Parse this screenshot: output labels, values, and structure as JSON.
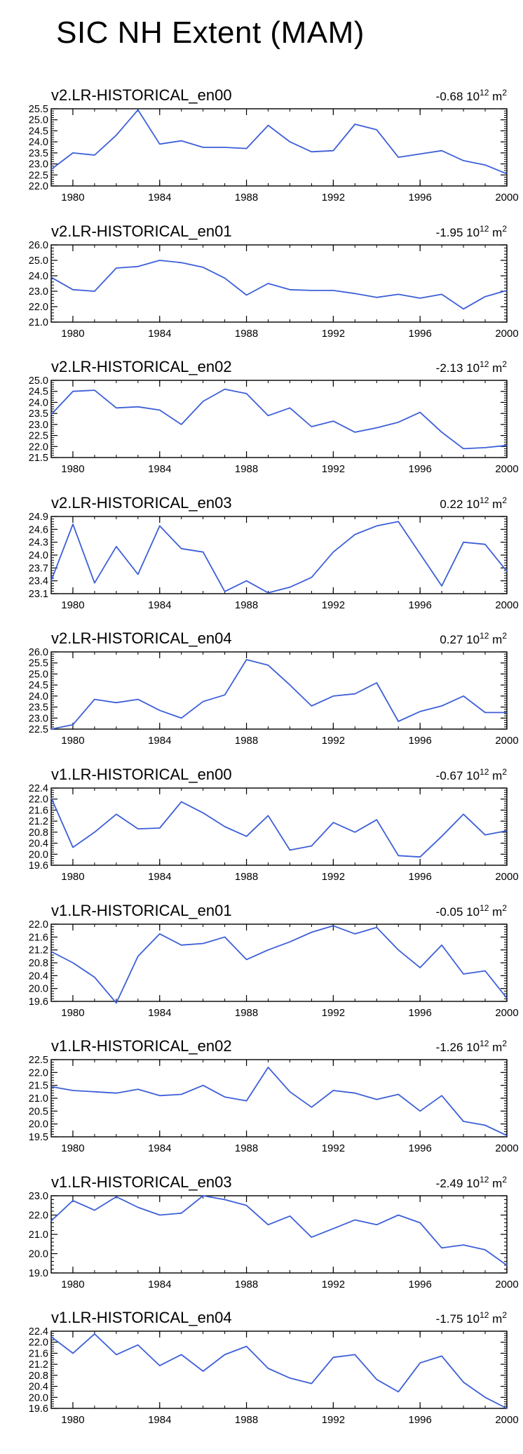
{
  "title": "SIC NH Extent (MAM)",
  "colors": {
    "line": "#3d5fd8",
    "axis": "#000000"
  },
  "chart_data": [
    {
      "type": "line",
      "title": "v2.LR-HISTORICAL_en00",
      "trend_value": "-0.68",
      "units_base": "10",
      "units_exp": "12",
      "units_unit": "m",
      "units_unit_exp": "2",
      "x": [
        1979,
        1980,
        1981,
        1982,
        1983,
        1984,
        1985,
        1986,
        1987,
        1988,
        1989,
        1990,
        1991,
        1992,
        1993,
        1994,
        1995,
        1996,
        1997,
        1998,
        1999,
        2000
      ],
      "values": [
        22.75,
        23.5,
        23.4,
        24.3,
        25.45,
        23.9,
        24.05,
        23.75,
        23.75,
        23.7,
        24.75,
        24.0,
        23.55,
        23.6,
        24.8,
        24.55,
        23.3,
        23.45,
        23.6,
        23.15,
        22.95,
        22.55
      ],
      "xlim": [
        1979,
        2000
      ],
      "ylim": [
        22.0,
        25.5
      ],
      "xticks": [
        "1980",
        "1984",
        "1988",
        "1992",
        "1996",
        "2000"
      ],
      "yticks": [
        "22.0",
        "22.5",
        "23.0",
        "23.5",
        "24.0",
        "24.5",
        "25.0",
        "25.5"
      ]
    },
    {
      "type": "line",
      "title": "v2.LR-HISTORICAL_en01",
      "trend_value": "-1.95",
      "units_base": "10",
      "units_exp": "12",
      "units_unit": "m",
      "units_unit_exp": "2",
      "x": [
        1979,
        1980,
        1981,
        1982,
        1983,
        1984,
        1985,
        1986,
        1987,
        1988,
        1989,
        1990,
        1991,
        1992,
        1993,
        1994,
        1995,
        1996,
        1997,
        1998,
        1999,
        2000
      ],
      "values": [
        23.9,
        23.1,
        23.0,
        24.5,
        24.6,
        25.0,
        24.85,
        24.55,
        23.85,
        22.75,
        23.5,
        23.1,
        23.05,
        23.05,
        22.85,
        22.6,
        22.8,
        22.55,
        22.8,
        21.85,
        22.65,
        23.05
      ],
      "xlim": [
        1979,
        2000
      ],
      "ylim": [
        21.0,
        26.0
      ],
      "xticks": [
        "1980",
        "1984",
        "1988",
        "1992",
        "1996",
        "2000"
      ],
      "yticks": [
        "21.0",
        "22.0",
        "23.0",
        "24.0",
        "25.0",
        "26.0"
      ]
    },
    {
      "type": "line",
      "title": "v2.LR-HISTORICAL_en02",
      "trend_value": "-2.13",
      "units_base": "10",
      "units_exp": "12",
      "units_unit": "m",
      "units_unit_exp": "2",
      "x": [
        1979,
        1980,
        1981,
        1982,
        1983,
        1984,
        1985,
        1986,
        1987,
        1988,
        1989,
        1990,
        1991,
        1992,
        1993,
        1994,
        1995,
        1996,
        1997,
        1998,
        1999,
        2000
      ],
      "values": [
        23.45,
        24.5,
        24.55,
        23.75,
        23.8,
        23.65,
        23.0,
        24.05,
        24.6,
        24.4,
        23.4,
        23.75,
        22.9,
        23.15,
        22.65,
        22.85,
        23.1,
        23.55,
        22.65,
        21.9,
        21.95,
        22.05
      ],
      "xlim": [
        1979,
        2000
      ],
      "ylim": [
        21.5,
        25.0
      ],
      "xticks": [
        "1980",
        "1984",
        "1988",
        "1992",
        "1996",
        "2000"
      ],
      "yticks": [
        "21.5",
        "22.0",
        "22.5",
        "23.0",
        "23.5",
        "24.0",
        "24.5",
        "25.0"
      ]
    },
    {
      "type": "line",
      "title": "v2.LR-HISTORICAL_en03",
      "trend_value": "0.22",
      "units_base": "10",
      "units_exp": "12",
      "units_unit": "m",
      "units_unit_exp": "2",
      "x": [
        1979,
        1980,
        1981,
        1982,
        1983,
        1984,
        1985,
        1986,
        1987,
        1988,
        1989,
        1990,
        1991,
        1992,
        1993,
        1994,
        1995,
        1996,
        1997,
        1998,
        1999,
        2000
      ],
      "values": [
        23.4,
        24.72,
        23.35,
        24.2,
        23.55,
        24.68,
        24.15,
        24.07,
        23.15,
        23.4,
        23.12,
        23.25,
        23.48,
        24.07,
        24.48,
        24.68,
        24.78,
        24.03,
        23.28,
        24.3,
        24.25,
        23.62
      ],
      "xlim": [
        1979,
        2000
      ],
      "ylim": [
        23.1,
        24.9
      ],
      "xticks": [
        "1980",
        "1984",
        "1988",
        "1992",
        "1996",
        "2000"
      ],
      "yticks": [
        "23.1",
        "23.4",
        "23.7",
        "24.0",
        "24.3",
        "24.6",
        "24.9"
      ]
    },
    {
      "type": "line",
      "title": "v2.LR-HISTORICAL_en04",
      "trend_value": "0.27",
      "units_base": "10",
      "units_exp": "12",
      "units_unit": "m",
      "units_unit_exp": "2",
      "x": [
        1979,
        1980,
        1981,
        1982,
        1983,
        1984,
        1985,
        1986,
        1987,
        1988,
        1989,
        1990,
        1991,
        1992,
        1993,
        1994,
        1995,
        1996,
        1997,
        1998,
        1999,
        2000
      ],
      "values": [
        22.5,
        22.7,
        23.85,
        23.7,
        23.85,
        23.35,
        23.0,
        23.75,
        24.05,
        25.65,
        25.4,
        24.5,
        23.55,
        24.0,
        24.1,
        24.6,
        22.85,
        23.3,
        23.55,
        24.0,
        23.25,
        23.25
      ],
      "xlim": [
        1979,
        2000
      ],
      "ylim": [
        22.5,
        26.0
      ],
      "xticks": [
        "1980",
        "1984",
        "1988",
        "1992",
        "1996",
        "2000"
      ],
      "yticks": [
        "22.5",
        "23.0",
        "23.5",
        "24.0",
        "24.5",
        "25.0",
        "25.5",
        "26.0"
      ]
    },
    {
      "type": "line",
      "title": "v1.LR-HISTORICAL_en00",
      "trend_value": "-0.67",
      "units_base": "10",
      "units_exp": "12",
      "units_unit": "m",
      "units_unit_exp": "2",
      "x": [
        1979,
        1980,
        1981,
        1982,
        1983,
        1984,
        1985,
        1986,
        1987,
        1988,
        1989,
        1990,
        1991,
        1992,
        1993,
        1994,
        1995,
        1996,
        1997,
        1998,
        1999,
        2000
      ],
      "values": [
        22.05,
        20.25,
        20.8,
        21.45,
        20.92,
        20.95,
        21.9,
        21.5,
        21.0,
        20.65,
        21.4,
        20.15,
        20.3,
        21.15,
        20.8,
        21.25,
        19.95,
        19.9,
        20.65,
        21.45,
        20.7,
        20.85
      ],
      "xlim": [
        1979,
        2000
      ],
      "ylim": [
        19.6,
        22.4
      ],
      "xticks": [
        "1980",
        "1984",
        "1988",
        "1992",
        "1996",
        "2000"
      ],
      "yticks": [
        "19.6",
        "20.0",
        "20.4",
        "20.8",
        "21.2",
        "21.6",
        "22.0",
        "22.4"
      ]
    },
    {
      "type": "line",
      "title": "v1.LR-HISTORICAL_en01",
      "trend_value": "-0.05",
      "units_base": "10",
      "units_exp": "12",
      "units_unit": "m",
      "units_unit_exp": "2",
      "x": [
        1979,
        1980,
        1981,
        1982,
        1983,
        1984,
        1985,
        1986,
        1987,
        1988,
        1989,
        1990,
        1991,
        1992,
        1993,
        1994,
        1995,
        1996,
        1997,
        1998,
        1999,
        2000
      ],
      "values": [
        21.15,
        20.8,
        20.35,
        19.55,
        21.0,
        21.7,
        21.35,
        21.4,
        21.6,
        20.9,
        21.2,
        21.45,
        21.75,
        21.95,
        21.7,
        21.9,
        21.2,
        20.65,
        21.35,
        20.45,
        20.55,
        19.7
      ],
      "xlim": [
        1979,
        2000
      ],
      "ylim": [
        19.6,
        22.0
      ],
      "xticks": [
        "1980",
        "1984",
        "1988",
        "1992",
        "1996",
        "2000"
      ],
      "yticks": [
        "19.6",
        "20.0",
        "20.4",
        "20.8",
        "21.2",
        "21.6",
        "22.0"
      ]
    },
    {
      "type": "line",
      "title": "v1.LR-HISTORICAL_en02",
      "trend_value": "-1.26",
      "units_base": "10",
      "units_exp": "12",
      "units_unit": "m",
      "units_unit_exp": "2",
      "x": [
        1979,
        1980,
        1981,
        1982,
        1983,
        1984,
        1985,
        1986,
        1987,
        1988,
        1989,
        1990,
        1991,
        1992,
        1993,
        1994,
        1995,
        1996,
        1997,
        1998,
        1999,
        2000
      ],
      "values": [
        21.45,
        21.3,
        21.25,
        21.2,
        21.35,
        21.1,
        21.15,
        21.5,
        21.05,
        20.9,
        22.2,
        21.25,
        20.65,
        21.3,
        21.2,
        20.95,
        21.15,
        20.5,
        21.1,
        20.1,
        19.95,
        19.55
      ],
      "xlim": [
        1979,
        2000
      ],
      "ylim": [
        19.5,
        22.5
      ],
      "xticks": [
        "1980",
        "1984",
        "1988",
        "1992",
        "1996",
        "2000"
      ],
      "yticks": [
        "19.5",
        "20.0",
        "20.5",
        "21.0",
        "21.5",
        "22.0",
        "22.5"
      ]
    },
    {
      "type": "line",
      "title": "v1.LR-HISTORICAL_en03",
      "trend_value": "-2.49",
      "units_base": "10",
      "units_exp": "12",
      "units_unit": "m",
      "units_unit_exp": "2",
      "x": [
        1979,
        1980,
        1981,
        1982,
        1983,
        1984,
        1985,
        1986,
        1987,
        1988,
        1989,
        1990,
        1991,
        1992,
        1993,
        1994,
        1995,
        1996,
        1997,
        1998,
        1999,
        2000
      ],
      "values": [
        21.7,
        22.75,
        22.25,
        22.95,
        22.4,
        22.0,
        22.1,
        23.0,
        22.8,
        22.5,
        21.5,
        21.95,
        20.85,
        21.3,
        21.75,
        21.5,
        22.0,
        21.6,
        20.3,
        20.45,
        20.2,
        19.4
      ],
      "xlim": [
        1979,
        2000
      ],
      "ylim": [
        19.0,
        23.0
      ],
      "xticks": [
        "1980",
        "1984",
        "1988",
        "1992",
        "1996",
        "2000"
      ],
      "yticks": [
        "19.0",
        "20.0",
        "21.0",
        "22.0",
        "23.0"
      ]
    },
    {
      "type": "line",
      "title": "v1.LR-HISTORICAL_en04",
      "trend_value": "-1.75",
      "units_base": "10",
      "units_exp": "12",
      "units_unit": "m",
      "units_unit_exp": "2",
      "x": [
        1979,
        1980,
        1981,
        1982,
        1983,
        1984,
        1985,
        1986,
        1987,
        1988,
        1989,
        1990,
        1991,
        1992,
        1993,
        1994,
        1995,
        1996,
        1997,
        1998,
        1999,
        2000
      ],
      "values": [
        22.2,
        21.6,
        22.3,
        21.55,
        21.9,
        21.15,
        21.55,
        20.95,
        21.55,
        21.85,
        21.05,
        20.7,
        20.5,
        21.45,
        21.55,
        20.65,
        20.2,
        21.25,
        21.5,
        20.55,
        20.0,
        19.6
      ],
      "xlim": [
        1979,
        2000
      ],
      "ylim": [
        19.6,
        22.4
      ],
      "xticks": [
        "1980",
        "1984",
        "1988",
        "1992",
        "1996",
        "2000"
      ],
      "yticks": [
        "19.6",
        "20.0",
        "20.4",
        "20.8",
        "21.2",
        "21.6",
        "22.0",
        "22.4"
      ]
    }
  ]
}
